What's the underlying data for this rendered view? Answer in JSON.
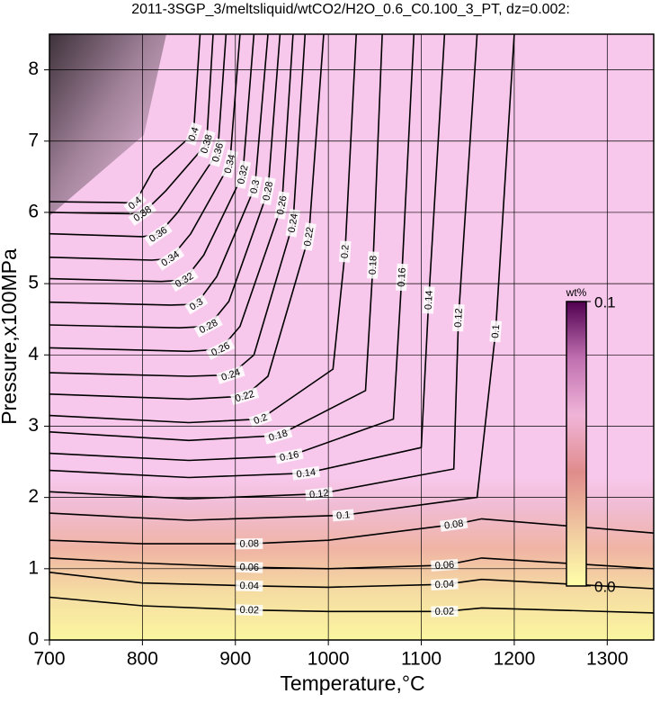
{
  "chart_data": {
    "type": "contour",
    "title": "2011-3SGP_3/meltsliquid/wtCO2/H2O_0.6_C0.100_3_PT, dz=0.002:",
    "x_label": "Temperature,°C",
    "y_label": "Pressure,x100MPa",
    "xlim": [
      700,
      1350
    ],
    "ylim": [
      0,
      8.5
    ],
    "xticks": [
      700,
      800,
      900,
      1000,
      1100,
      1200,
      1300
    ],
    "yticks": [
      0,
      1,
      2,
      3,
      4,
      5,
      6,
      7,
      8
    ],
    "grid": true,
    "line_color": "#000000",
    "colorbar": {
      "label": "wt%",
      "clim": [
        0,
        0.1
      ],
      "ticks": [
        {
          "value": 0,
          "label": "0.0"
        },
        0.1
      ],
      "colors": [
        "#ffffa8",
        "#f0c8a0",
        "#e08c8c",
        "#f0b4d8",
        "#c070b0",
        "#500050"
      ]
    },
    "series": [
      {
        "name": "0.02",
        "x": [
          700,
          800,
          915,
          1000,
          1125,
          1165,
          1350
        ],
        "values": [
          0.6,
          0.48,
          0.42,
          0.4,
          0.4,
          0.45,
          0.38
        ]
      },
      {
        "name": "0.04",
        "x": [
          700,
          800,
          915,
          1000,
          1125,
          1165,
          1350
        ],
        "values": [
          0.95,
          0.8,
          0.76,
          0.74,
          0.78,
          0.85,
          0.72
        ]
      },
      {
        "name": "0.06",
        "x": [
          700,
          800,
          915,
          1000,
          1125,
          1165,
          1350
        ],
        "values": [
          1.15,
          1.08,
          1.02,
          1.0,
          1.05,
          1.15,
          1.0
        ]
      },
      {
        "name": "0.08",
        "x": [
          700,
          800,
          915,
          1000,
          1135,
          1165,
          1350
        ],
        "values": [
          1.4,
          1.35,
          1.35,
          1.4,
          1.62,
          1.7,
          1.5
        ]
      },
      {
        "name": "0.1",
        "x": [
          700,
          850,
          1016,
          1160,
          1180,
          1200
        ],
        "values": [
          1.78,
          1.68,
          1.75,
          2.0,
          4.33,
          8.5
        ]
      },
      {
        "name": "0.12",
        "x": [
          700,
          850,
          990,
          1135,
          1140,
          1160
        ],
        "values": [
          2.08,
          1.98,
          2.05,
          2.4,
          4.52,
          8.5
        ]
      },
      {
        "name": "0.14",
        "x": [
          700,
          850,
          976,
          1100,
          1108,
          1125
        ],
        "values": [
          2.38,
          2.28,
          2.34,
          2.7,
          4.77,
          8.5
        ]
      },
      {
        "name": "0.16",
        "x": [
          700,
          850,
          958,
          1070,
          1079,
          1092
        ],
        "values": [
          2.62,
          2.52,
          2.58,
          3.1,
          5.09,
          8.5
        ]
      },
      {
        "name": "0.18",
        "x": [
          700,
          850,
          946,
          1040,
          1048,
          1058
        ],
        "values": [
          2.92,
          2.8,
          2.87,
          3.5,
          5.26,
          8.5
        ]
      },
      {
        "name": "0.2",
        "x": [
          700,
          850,
          927,
          1005,
          1018,
          1030
        ],
        "values": [
          3.15,
          3.05,
          3.1,
          3.8,
          5.45,
          8.5
        ]
      },
      {
        "name": "0.22",
        "x": [
          700,
          850,
          910,
          935,
          979,
          995
        ],
        "values": [
          3.45,
          3.38,
          3.42,
          3.7,
          5.66,
          8.5
        ]
      },
      {
        "name": "0.24",
        "x": [
          700,
          850,
          895,
          920,
          962,
          975
        ],
        "values": [
          3.75,
          3.7,
          3.72,
          4.0,
          5.85,
          8.5
        ]
      },
      {
        "name": "0.26",
        "x": [
          700,
          850,
          884,
          905,
          950,
          962
        ],
        "values": [
          4.1,
          4.05,
          4.08,
          4.4,
          6.1,
          8.5
        ]
      },
      {
        "name": "0.28",
        "x": [
          700,
          840,
          871,
          893,
          935,
          948
        ],
        "values": [
          4.42,
          4.38,
          4.4,
          4.75,
          6.3,
          8.5
        ]
      },
      {
        "name": "0.3",
        "x": [
          700,
          830,
          858,
          880,
          921,
          935
        ],
        "values": [
          4.74,
          4.7,
          4.71,
          5.1,
          6.36,
          8.5
        ]
      },
      {
        "name": "0.32",
        "x": [
          700,
          820,
          845,
          866,
          908,
          920
        ],
        "values": [
          5.07,
          5.03,
          5.05,
          5.4,
          6.53,
          8.5
        ]
      },
      {
        "name": "0.34",
        "x": [
          700,
          810,
          830,
          852,
          894,
          905
        ],
        "values": [
          5.37,
          5.33,
          5.35,
          5.7,
          6.68,
          8.5
        ]
      },
      {
        "name": "0.36",
        "x": [
          700,
          800,
          817,
          838,
          881,
          890
        ],
        "values": [
          5.7,
          5.66,
          5.69,
          6.0,
          6.84,
          8.5
        ]
      },
      {
        "name": "0.38",
        "x": [
          700,
          790,
          800,
          825,
          869,
          876
        ],
        "values": [
          6.0,
          5.98,
          5.98,
          6.3,
          6.96,
          8.5
        ]
      },
      {
        "name": "0.4",
        "x": [
          700,
          770,
          792,
          812,
          855,
          862
        ],
        "values": [
          6.15,
          6.14,
          6.13,
          6.6,
          7.1,
          8.5
        ]
      }
    ]
  }
}
